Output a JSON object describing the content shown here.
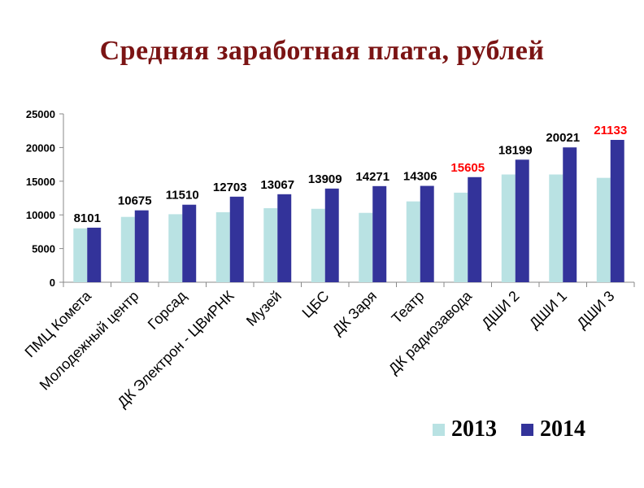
{
  "chart_data": {
    "type": "bar",
    "title": "Средняя заработная плата, рублей",
    "categories": [
      "ПМЦ Комета",
      "Молодежный центр",
      "Горсад",
      "ДК Электрон - ЦВиРНК",
      "Музей",
      "ЦБС",
      "ДК Заря",
      "Театр",
      "ДК радиозавода",
      "ДШИ 2",
      "ДШИ 1",
      "ДШИ 3"
    ],
    "series": [
      {
        "name": "2013",
        "color": "#b9e2e3",
        "values": [
          8000,
          9700,
          10100,
          10400,
          11000,
          10900,
          10300,
          12000,
          13300,
          16000,
          16000,
          15500
        ]
      },
      {
        "name": "2014",
        "color": "#33339a",
        "values": [
          8101,
          10675,
          11510,
          12703,
          13067,
          13909,
          14271,
          14306,
          15605,
          18199,
          20021,
          21133
        ]
      }
    ],
    "data_labels": {
      "series": "2014",
      "values": [
        "8101",
        "10675",
        "11510",
        "12703",
        "13067",
        "13909",
        "14271",
        "14306",
        "15605",
        "18199",
        "20021",
        "21133"
      ],
      "colors": [
        "#000000",
        "#000000",
        "#000000",
        "#000000",
        "#000000",
        "#000000",
        "#000000",
        "#000000",
        "#ff0000",
        "#000000",
        "#000000",
        "#ff0000"
      ]
    },
    "y_ticks": [
      "0",
      "5000",
      "10000",
      "15000",
      "20000",
      "25000"
    ],
    "ylim": [
      0,
      25000
    ],
    "grid": false,
    "legend": {
      "position": "bottom-right",
      "entries": [
        "2013",
        "2014"
      ]
    },
    "xlabel": "",
    "ylabel": ""
  }
}
